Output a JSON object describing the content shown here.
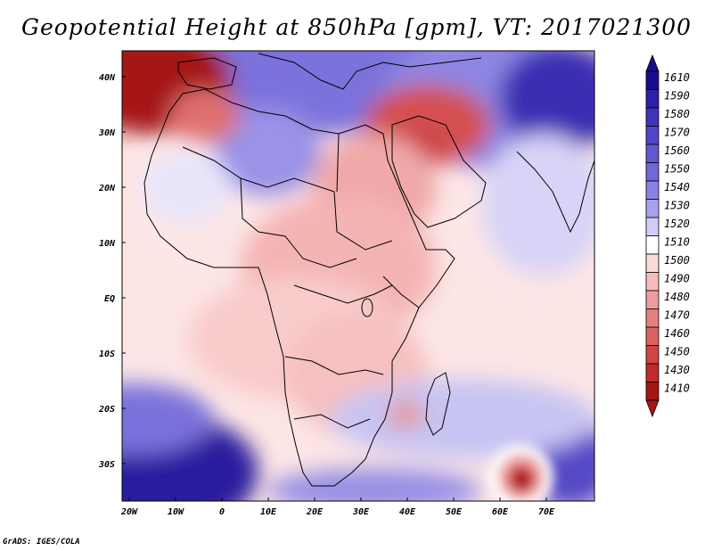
{
  "title": "Geopotential Height at 850hPa [gpm], VT: 2017021300",
  "credit": "GrADS: IGES/COLA",
  "map": {
    "region": "Africa",
    "variable": "Geopotential Height at 850hPa",
    "units": "gpm",
    "valid_time": "2017021300",
    "lat_labels": [
      "40N",
      "30N",
      "20N",
      "10N",
      "EQ",
      "10S",
      "20S",
      "30S"
    ],
    "lon_labels": [
      "20W",
      "10W",
      "0",
      "10E",
      "20E",
      "30E",
      "40E",
      "50E",
      "60E",
      "70E"
    ]
  },
  "colorbar": {
    "levels": [
      "1610",
      "1590",
      "1580",
      "1570",
      "1560",
      "1550",
      "1540",
      "1530",
      "1520",
      "1510",
      "1500",
      "1490",
      "1480",
      "1470",
      "1460",
      "1450",
      "1430",
      "1410"
    ],
    "colors": [
      "#1a0c8c",
      "#2d20a8",
      "#3f33bb",
      "#5145c8",
      "#6157d2",
      "#7266db",
      "#8a82e3",
      "#a8a2ec",
      "#d0ccf5",
      "#ffffff",
      "#fbdada",
      "#f5bcbc",
      "#ee9e9e",
      "#e68080",
      "#dc6262",
      "#d04444",
      "#c02a2a",
      "#a81515"
    ]
  }
}
